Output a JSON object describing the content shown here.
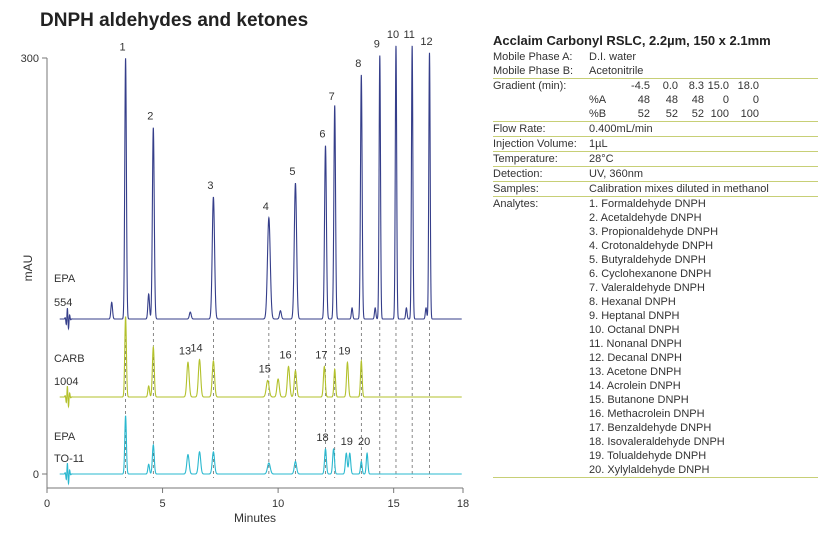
{
  "title": "DNPH aldehydes and ketones",
  "chart_data": {
    "type": "line",
    "xlabel": "Minutes",
    "ylabel": "mAU",
    "xlim": [
      0,
      18
    ],
    "ylim": [
      0,
      300
    ],
    "xticks": [
      0,
      5,
      10,
      15,
      18
    ],
    "yticks": [
      0,
      300
    ],
    "grid": false,
    "series": [
      {
        "name": "EPA 554",
        "label_lines": [
          "EPA",
          "554"
        ],
        "color": "#353e8a",
        "peaks": [
          {
            "t": 2.8,
            "h": 12,
            "w": 0.035
          },
          {
            "t": 3.4,
            "h": 188,
            "w": 0.035,
            "label": "1"
          },
          {
            "t": 4.4,
            "h": 18,
            "w": 0.035
          },
          {
            "t": 4.6,
            "h": 138,
            "w": 0.04,
            "label": "2"
          },
          {
            "t": 6.2,
            "h": 5,
            "w": 0.04
          },
          {
            "t": 7.2,
            "h": 88,
            "w": 0.05,
            "label": "3"
          },
          {
            "t": 9.6,
            "h": 73,
            "w": 0.06,
            "label": "4"
          },
          {
            "t": 10.1,
            "h": 6,
            "w": 0.04
          },
          {
            "t": 10.75,
            "h": 98,
            "w": 0.05,
            "label": "5"
          },
          {
            "t": 12.05,
            "h": 125,
            "w": 0.04,
            "label": "6"
          },
          {
            "t": 12.4,
            "h": 8,
            "w": 0.03
          },
          {
            "t": 12.4,
            "h": 0,
            "w": 0.03
          },
          {
            "t": 12.45,
            "h": 0,
            "w": 0.03
          },
          {
            "t": 12.45,
            "h": 0,
            "w": 0.03
          },
          {
            "t": 12.45,
            "h": 0,
            "w": 0.03
          },
          {
            "t": 12.45,
            "h": 0,
            "w": 0.03
          },
          {
            "t": 12.5,
            "h": 0,
            "w": 0.03
          },
          {
            "t": 12.5,
            "h": 0,
            "w": 0.03
          },
          {
            "t": 12.5,
            "h": 0,
            "w": 0.03
          },
          {
            "t": 12.5,
            "h": 0,
            "w": 0.03
          },
          {
            "t": 12.5,
            "h": 0,
            "w": 0.03
          },
          {
            "t": 12.5,
            "h": 0,
            "w": 0.03
          },
          {
            "t": 12.5,
            "h": 0,
            "w": 0.03
          },
          {
            "t": 12.5,
            "h": 0,
            "w": 0.03
          },
          {
            "t": 12.5,
            "h": 0,
            "w": 0.03
          },
          {
            "t": 12.5,
            "h": 0,
            "w": 0.03
          },
          {
            "t": 12.45,
            "h": 152,
            "w": 0.035,
            "label": "7"
          },
          {
            "t": 13.2,
            "h": 8,
            "w": 0.03
          },
          {
            "t": 13.6,
            "h": 176,
            "w": 0.035,
            "label": "8"
          },
          {
            "t": 14.2,
            "h": 8,
            "w": 0.03
          },
          {
            "t": 14.4,
            "h": 190,
            "w": 0.03,
            "label": "9"
          },
          {
            "t": 15.1,
            "h": 197,
            "w": 0.03,
            "label": "10"
          },
          {
            "t": 15.55,
            "h": 8,
            "w": 0.03
          },
          {
            "t": 15.8,
            "h": 197,
            "w": 0.03,
            "label": "11"
          },
          {
            "t": 16.4,
            "h": 8,
            "w": 0.03
          },
          {
            "t": 16.55,
            "h": 192,
            "w": 0.03,
            "label": "12"
          }
        ]
      },
      {
        "name": "CARB 1004",
        "label_lines": [
          "CARB",
          "1004"
        ],
        "color": "#b3c12b",
        "peaks": [
          {
            "t": 3.4,
            "h": 58,
            "w": 0.035
          },
          {
            "t": 4.4,
            "h": 8,
            "w": 0.035
          },
          {
            "t": 4.6,
            "h": 36,
            "w": 0.04
          },
          {
            "t": 6.1,
            "h": 25,
            "w": 0.05,
            "label": "13"
          },
          {
            "t": 6.6,
            "h": 27,
            "w": 0.05,
            "label": "14"
          },
          {
            "t": 7.2,
            "h": 26,
            "w": 0.05
          },
          {
            "t": 9.55,
            "h": 12,
            "w": 0.06,
            "label": "15"
          },
          {
            "t": 10.0,
            "h": 13,
            "w": 0.05
          },
          {
            "t": 10.45,
            "h": 22,
            "w": 0.05,
            "label": "16"
          },
          {
            "t": 10.75,
            "h": 19,
            "w": 0.05
          },
          {
            "t": 12.0,
            "h": 22,
            "w": 0.04,
            "label": "17"
          },
          {
            "t": 12.45,
            "h": 20,
            "w": 0.035
          },
          {
            "t": 13.0,
            "h": 25,
            "w": 0.04,
            "label": "19"
          },
          {
            "t": 13.6,
            "h": 26,
            "w": 0.035
          }
        ]
      },
      {
        "name": "EPA TO-11",
        "label_lines": [
          "EPA",
          "TO-11"
        ],
        "color": "#2ab8cf",
        "peaks": [
          {
            "t": 3.4,
            "h": 42,
            "w": 0.035
          },
          {
            "t": 4.4,
            "h": 7,
            "w": 0.035
          },
          {
            "t": 4.6,
            "h": 21,
            "w": 0.04
          },
          {
            "t": 6.1,
            "h": 14,
            "w": 0.05
          },
          {
            "t": 6.6,
            "h": 16,
            "w": 0.05
          },
          {
            "t": 7.2,
            "h": 16,
            "w": 0.05
          },
          {
            "t": 9.6,
            "h": 8,
            "w": 0.06
          },
          {
            "t": 10.75,
            "h": 9,
            "w": 0.05
          },
          {
            "t": 12.05,
            "h": 18,
            "w": 0.04,
            "label": "18"
          },
          {
            "t": 12.4,
            "h": 18,
            "w": 0.04
          },
          {
            "t": 12.95,
            "h": 15,
            "w": 0.04
          },
          {
            "t": 13.1,
            "h": 15,
            "w": 0.04,
            "label": "19"
          },
          {
            "t": 13.6,
            "h": 9,
            "w": 0.035
          },
          {
            "t": 13.85,
            "h": 15,
            "w": 0.035,
            "label": "20"
          }
        ]
      }
    ]
  },
  "info": {
    "title": "Acclaim Carbonyl RSLC, 2.2µm, 150 x 2.1mm",
    "rows": [
      {
        "label": "Mobile Phase A:",
        "value": "D.I. water"
      },
      {
        "label": "Mobile Phase B:",
        "value": "Acetonitrile"
      }
    ],
    "gradient": {
      "label": "Gradient (min):",
      "times": [
        "-4.5",
        "0.0",
        "8.3",
        "15.0",
        "18.0"
      ],
      "pct_a_label": "%A",
      "pct_a": [
        "48",
        "48",
        "48",
        "0",
        "0"
      ],
      "pct_b_label": "%B",
      "pct_b": [
        "52",
        "52",
        "52",
        "100",
        "100"
      ]
    },
    "rows2": [
      {
        "label": "Flow Rate:",
        "value": "0.400mL/min"
      },
      {
        "label": "Injection Volume:",
        "value": "1µL"
      },
      {
        "label": "Temperature:",
        "value": "28°C"
      },
      {
        "label": "Detection:",
        "value": "UV, 360nm"
      },
      {
        "label": "Samples:",
        "value": "Calibration mixes diluted in methanol"
      }
    ],
    "analytes_label": "Analytes:",
    "analytes": [
      "1. Formaldehyde DNPH",
      "2. Acetaldehyde DNPH",
      "3. Propionaldehyde DNPH",
      "4. Crotonaldehyde DNPH",
      "5. Butyraldehyde DNPH",
      "6. Cyclohexanone DNPH",
      "7. Valeraldehyde DNPH",
      "8. Hexanal DNPH",
      "9. Heptanal DNPH",
      "10. Octanal DNPH",
      "11. Nonanal DNPH",
      "12. Decanal DNPH",
      "13. Acetone DNPH",
      "14. Acrolein DNPH",
      "15. Butanone DNPH",
      "16. Methacrolein DNPH",
      "17. Benzaldehyde DNPH",
      "18. Isovaleraldehyde DNPH",
      "19. Tolualdehyde DNPH",
      "20. Xylylaldehyde DNPH"
    ]
  }
}
